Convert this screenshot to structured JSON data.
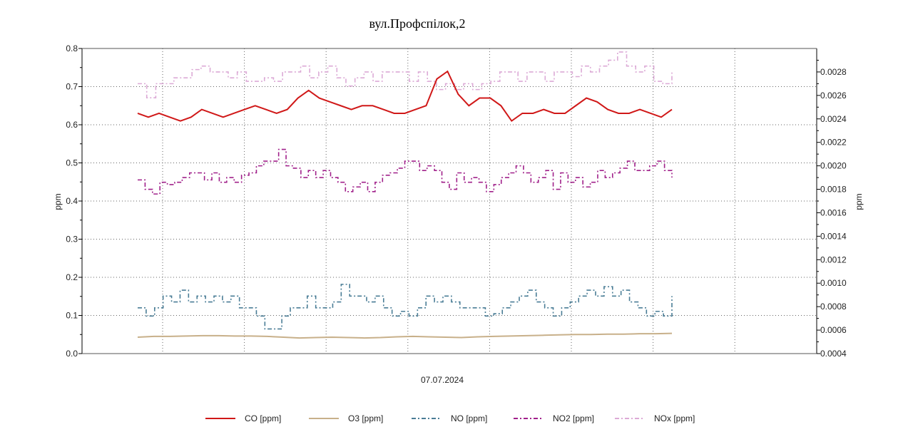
{
  "chart_data": {
    "type": "line",
    "title": "вул.Профспілок,2",
    "xlabel": "07.07.2024",
    "ylabel_left": "ppm",
    "ylabel_right": "ppm",
    "ylim_left": [
      0,
      0.8
    ],
    "ylim_right": [
      0.0004,
      0.003
    ],
    "yticks_left": [
      "0.0",
      "0.1",
      "0.2",
      "0.3",
      "0.4",
      "0.5",
      "0.6",
      "0.7",
      "0.8"
    ],
    "yticks_right": [
      "0.0004",
      "0.0006",
      "0.0008",
      "0.0010",
      "0.0012",
      "0.0014",
      "0.0016",
      "0.0018",
      "0.0020",
      "0.0022",
      "0.0024",
      "0.0026",
      "0.0028"
    ],
    "grid": true,
    "legend_position": "bottom",
    "series": [
      {
        "name": "CO [ppm]",
        "axis": "left",
        "color": "#d01818",
        "style": "solid",
        "values": [
          0.63,
          0.62,
          0.63,
          0.62,
          0.61,
          0.62,
          0.64,
          0.63,
          0.62,
          0.63,
          0.64,
          0.65,
          0.64,
          0.63,
          0.64,
          0.67,
          0.69,
          0.67,
          0.66,
          0.65,
          0.64,
          0.65,
          0.65,
          0.64,
          0.63,
          0.63,
          0.64,
          0.65,
          0.72,
          0.74,
          0.68,
          0.65,
          0.67,
          0.67,
          0.65,
          0.61,
          0.63,
          0.63,
          0.64,
          0.63,
          0.63,
          0.65,
          0.67,
          0.66,
          0.64,
          0.63,
          0.63,
          0.64,
          0.63,
          0.62,
          0.64
        ]
      },
      {
        "name": "O3 [ppm]",
        "axis": "left",
        "color": "#c8b08a",
        "style": "solid",
        "values": [
          0.043,
          0.045,
          0.045,
          0.046,
          0.047,
          0.047,
          0.046,
          0.046,
          0.045,
          0.043,
          0.041,
          0.042,
          0.043,
          0.042,
          0.041,
          0.042,
          0.044,
          0.045,
          0.044,
          0.043,
          0.042,
          0.044,
          0.045,
          0.046,
          0.047,
          0.048,
          0.049,
          0.05,
          0.05,
          0.051,
          0.051,
          0.052,
          0.052,
          0.053
        ]
      },
      {
        "name": "NO [ppm]",
        "axis": "right",
        "color": "#4a7d96",
        "style": "dashdot",
        "values": [
          0.00079,
          0.00072,
          0.00079,
          0.00089,
          0.00084,
          0.00094,
          0.00084,
          0.00089,
          0.00084,
          0.00089,
          0.00084,
          0.00089,
          0.00079,
          0.00079,
          0.00072,
          0.00061,
          0.00061,
          0.00072,
          0.00079,
          0.00079,
          0.00089,
          0.00079,
          0.00079,
          0.00084,
          0.00099,
          0.00089,
          0.00089,
          0.00084,
          0.00089,
          0.00079,
          0.00072,
          0.00076,
          0.00072,
          0.00079,
          0.00089,
          0.00084,
          0.00089,
          0.00084,
          0.00079,
          0.00079,
          0.00079,
          0.00072,
          0.00074,
          0.00079,
          0.00084,
          0.00089,
          0.00094,
          0.00084,
          0.00079,
          0.00072,
          0.00079,
          0.00084,
          0.00089,
          0.00094,
          0.00089,
          0.00097,
          0.00089,
          0.00094,
          0.00084,
          0.00079,
          0.00072,
          0.00076,
          0.00072,
          0.00089
        ]
      },
      {
        "name": "NO2 [ppm]",
        "axis": "right",
        "color": "#a0208a",
        "style": "dashdot",
        "values": [
          0.00188,
          0.0018,
          0.00176,
          0.00186,
          0.00184,
          0.00186,
          0.0019,
          0.00194,
          0.00194,
          0.00188,
          0.00194,
          0.00186,
          0.0019,
          0.00186,
          0.00192,
          0.00194,
          0.002,
          0.00204,
          0.00204,
          0.00214,
          0.002,
          0.00198,
          0.0019,
          0.00196,
          0.0019,
          0.00196,
          0.0019,
          0.00186,
          0.00178,
          0.00182,
          0.00186,
          0.00178,
          0.00186,
          0.00192,
          0.00194,
          0.00198,
          0.00204,
          0.00204,
          0.00196,
          0.002,
          0.00196,
          0.00186,
          0.0018,
          0.00194,
          0.00186,
          0.0019,
          0.00186,
          0.00178,
          0.00184,
          0.0019,
          0.00194,
          0.002,
          0.00194,
          0.00186,
          0.0019,
          0.00196,
          0.0018,
          0.00194,
          0.00186,
          0.0019,
          0.00182,
          0.00186,
          0.00196,
          0.0019,
          0.00194,
          0.00198,
          0.00204,
          0.00196,
          0.00196,
          0.002,
          0.00204,
          0.00196,
          0.0019
        ]
      },
      {
        "name": "NOx [ppm]",
        "axis": "right",
        "color": "#dcaad6",
        "style": "dashdot",
        "values": [
          0.0027,
          0.00258,
          0.0027,
          0.0027,
          0.00275,
          0.00275,
          0.00282,
          0.00285,
          0.0028,
          0.0028,
          0.00275,
          0.0028,
          0.00272,
          0.00272,
          0.00275,
          0.00272,
          0.0028,
          0.0028,
          0.00285,
          0.00275,
          0.0028,
          0.00285,
          0.00275,
          0.00268,
          0.00275,
          0.0028,
          0.00272,
          0.0028,
          0.0028,
          0.0028,
          0.00272,
          0.0028,
          0.00272,
          0.00265,
          0.0027,
          0.00265,
          0.0027,
          0.00265,
          0.0027,
          0.00272,
          0.0028,
          0.0028,
          0.00272,
          0.0028,
          0.0028,
          0.00272,
          0.0028,
          0.0028,
          0.00276,
          0.00285,
          0.0028,
          0.00285,
          0.0029,
          0.00297,
          0.00285,
          0.0028,
          0.00285,
          0.00272,
          0.0027,
          0.0028
        ]
      }
    ]
  }
}
